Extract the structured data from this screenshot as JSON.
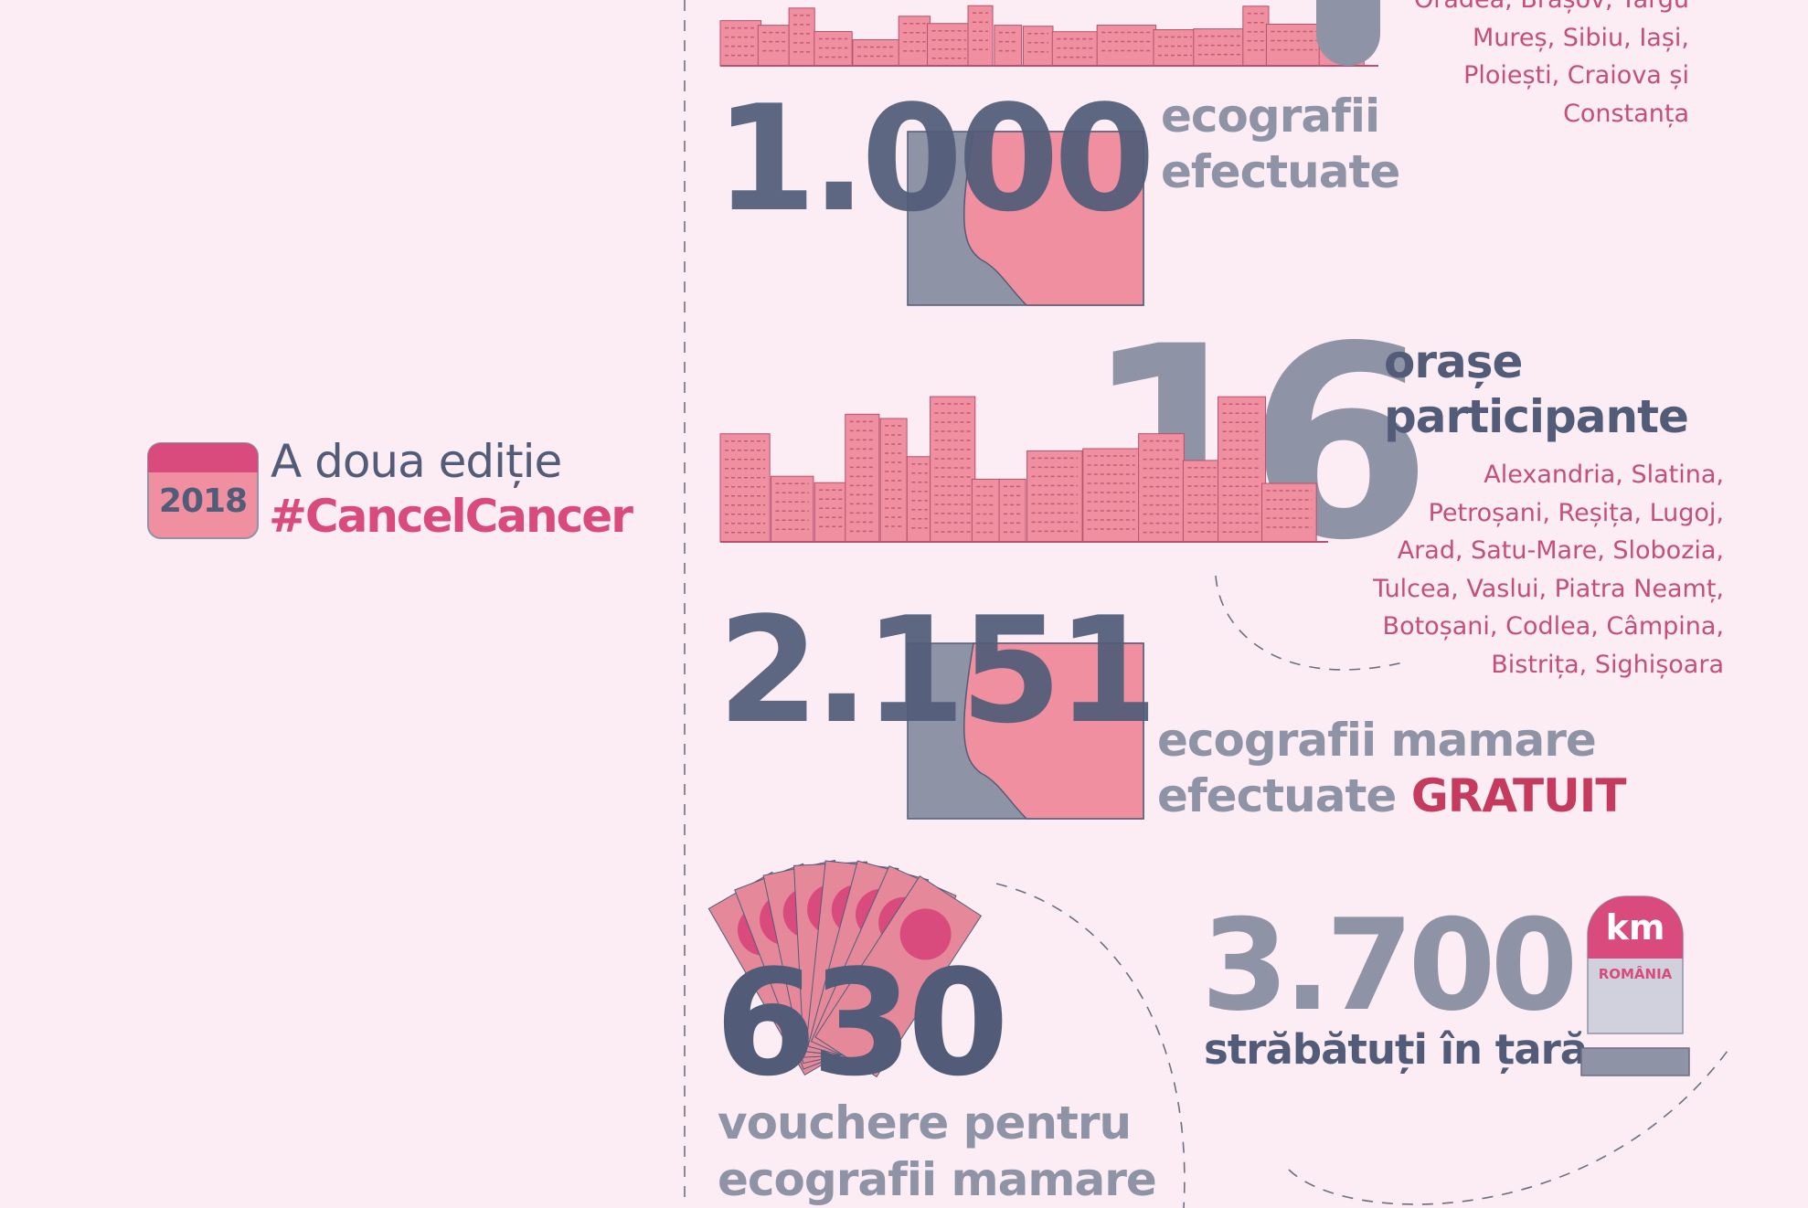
{
  "colors": {
    "background": "#fbedf3",
    "dark": "#525c78",
    "grey": "#8f93a6",
    "pink": "#d94a7d",
    "rose": "#ef8fa0",
    "red": "#c43b5e",
    "city_text": "#c44f77"
  },
  "edition": {
    "year": "2018",
    "title": "A doua ediție",
    "hashtag": "#CancelCancer",
    "icon": "calendar-icon"
  },
  "top_cities": {
    "lines": [
      "Oradea, Brașov, Târgu",
      "Mureș, Sibiu, Iași,",
      "Ploiești, Craiova și",
      "Constanța"
    ]
  },
  "stat_1000": {
    "value": "1.000",
    "label_lines": [
      "ecografii",
      "efectuate"
    ],
    "icon": "breast-square-icon"
  },
  "stat_16": {
    "value": "16",
    "label_lines": [
      "orașe",
      "participante"
    ],
    "icon": "city-skyline-icon",
    "cities": [
      "Alexandria, Slatina,",
      "Petroșani, Reșița, Lugoj,",
      "Arad, Satu-Mare, Slobozia,",
      "Tulcea, Vaslui, Piatra Neamț,",
      "Botoșani, Codlea, Câmpina,",
      "Bistrița, Sighișoara"
    ]
  },
  "stat_2151": {
    "value": "2.151",
    "label_line1": "ecografii mamare",
    "label_line2": "efectuate",
    "emphasis": "GRATUIT",
    "icon": "breast-square-icon"
  },
  "stat_630": {
    "value": "630",
    "label_lines": [
      "vouchere pentru",
      "ecografii mamare"
    ],
    "icon": "vouchers-fan-icon"
  },
  "stat_3700": {
    "value": "3.700",
    "label": "străbătuți în țară",
    "milestone_unit": "km",
    "milestone_country": "ROMÂNIA",
    "icon": "milestone-icon"
  }
}
